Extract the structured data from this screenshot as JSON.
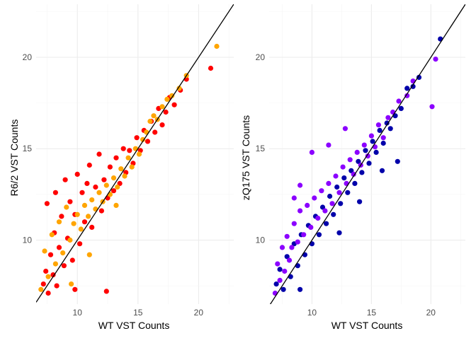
{
  "chart_data": [
    {
      "type": "scatter",
      "xlabel": "WT VST Counts",
      "ylabel": "R6/2 VST Counts",
      "xlim": [
        6.6,
        22.9
      ],
      "ylim": [
        6.5,
        22.9
      ],
      "xticks": [
        "10",
        "15",
        "20"
      ],
      "yticks": [
        "10",
        "15",
        "20"
      ],
      "grid": true,
      "legend": "none",
      "reference_line": {
        "slope": 1,
        "intercept": 0,
        "color": "#000000"
      },
      "series": [
        {
          "color": "#ff0000",
          "points": [
            [
              7.2,
              7.6
            ],
            [
              7.4,
              8.3
            ],
            [
              7.6,
              7.1
            ],
            [
              7.8,
              9.2
            ],
            [
              8.0,
              8.1
            ],
            [
              8.1,
              10.4
            ],
            [
              8.3,
              7.5
            ],
            [
              8.5,
              9.6
            ],
            [
              8.7,
              11.3
            ],
            [
              8.9,
              8.6
            ],
            [
              9.0,
              13.3
            ],
            [
              9.2,
              10.1
            ],
            [
              9.4,
              12.1
            ],
            [
              9.6,
              8.9
            ],
            [
              9.8,
              11.4
            ],
            [
              10.0,
              13.6
            ],
            [
              10.2,
              9.8
            ],
            [
              10.4,
              12.6
            ],
            [
              10.6,
              11.0
            ],
            [
              10.8,
              13.1
            ],
            [
              11.0,
              14.1
            ],
            [
              11.2,
              10.7
            ],
            [
              11.5,
              12.9
            ],
            [
              11.8,
              14.7
            ],
            [
              12.0,
              11.6
            ],
            [
              12.2,
              13.3
            ],
            [
              12.5,
              12.3
            ],
            [
              12.7,
              14.0
            ],
            [
              13.0,
              12.7
            ],
            [
              13.2,
              14.5
            ],
            [
              13.5,
              13.1
            ],
            [
              13.8,
              15.0
            ],
            [
              14.0,
              13.7
            ],
            [
              14.3,
              14.9
            ],
            [
              14.6,
              14.2
            ],
            [
              14.9,
              15.6
            ],
            [
              15.2,
              14.9
            ],
            [
              15.5,
              16.0
            ],
            [
              15.8,
              15.4
            ],
            [
              16.1,
              16.5
            ],
            [
              16.4,
              15.9
            ],
            [
              16.7,
              17.2
            ],
            [
              17.0,
              16.3
            ],
            [
              17.3,
              17.0
            ],
            [
              17.6,
              17.8
            ],
            [
              18.0,
              17.4
            ],
            [
              18.5,
              18.2
            ],
            [
              19.0,
              18.8
            ],
            [
              21.0,
              19.4
            ],
            [
              12.4,
              7.2
            ],
            [
              7.5,
              12.0
            ],
            [
              9.8,
              7.3
            ],
            [
              8.2,
              12.6
            ]
          ]
        },
        {
          "color": "#ffa500",
          "points": [
            [
              7.0,
              7.3
            ],
            [
              7.3,
              9.4
            ],
            [
              7.6,
              8.0
            ],
            [
              7.9,
              10.3
            ],
            [
              8.2,
              8.7
            ],
            [
              8.5,
              11.0
            ],
            [
              8.8,
              9.3
            ],
            [
              9.1,
              11.8
            ],
            [
              9.4,
              10.0
            ],
            [
              9.7,
              10.9
            ],
            [
              10.0,
              11.4
            ],
            [
              10.3,
              10.6
            ],
            [
              10.6,
              11.9
            ],
            [
              10.9,
              11.3
            ],
            [
              11.2,
              12.2
            ],
            [
              11.5,
              11.7
            ],
            [
              11.8,
              12.6
            ],
            [
              12.1,
              12.1
            ],
            [
              12.4,
              13.0
            ],
            [
              12.7,
              12.5
            ],
            [
              13.0,
              13.4
            ],
            [
              13.3,
              12.9
            ],
            [
              13.6,
              13.9
            ],
            [
              13.9,
              13.5
            ],
            [
              14.2,
              14.5
            ],
            [
              14.5,
              14.0
            ],
            [
              14.8,
              15.0
            ],
            [
              15.1,
              14.7
            ],
            [
              15.4,
              15.5
            ],
            [
              15.7,
              15.9
            ],
            [
              16.0,
              16.5
            ],
            [
              16.3,
              16.8
            ],
            [
              16.6,
              16.6
            ],
            [
              17.0,
              17.3
            ],
            [
              17.4,
              17.7
            ],
            [
              17.8,
              17.9
            ],
            [
              18.4,
              18.3
            ],
            [
              19.0,
              19.0
            ],
            [
              21.5,
              20.6
            ],
            [
              9.5,
              7.6
            ],
            [
              13.2,
              11.9
            ],
            [
              11.0,
              9.2
            ]
          ]
        }
      ]
    },
    {
      "type": "scatter",
      "xlabel": "WT VST Counts",
      "ylabel": "zQ175 VST Counts",
      "xlim": [
        6.4,
        22.9
      ],
      "ylim": [
        6.5,
        22.9
      ],
      "xticks": [
        "10",
        "15",
        "20"
      ],
      "yticks": [
        "10",
        "15",
        "20"
      ],
      "grid": true,
      "legend": "none",
      "reference_line": {
        "slope": 1,
        "intercept": 0,
        "color": "#000000"
      },
      "series": [
        {
          "color": "#0000aa",
          "points": [
            [
              7.0,
              7.6
            ],
            [
              7.3,
              8.4
            ],
            [
              7.6,
              7.3
            ],
            [
              7.9,
              9.1
            ],
            [
              8.2,
              8.0
            ],
            [
              8.5,
              9.8
            ],
            [
              8.8,
              8.6
            ],
            [
              9.1,
              10.3
            ],
            [
              9.4,
              9.2
            ],
            [
              9.7,
              10.8
            ],
            [
              10.0,
              9.8
            ],
            [
              10.3,
              11.3
            ],
            [
              10.6,
              10.3
            ],
            [
              10.9,
              11.8
            ],
            [
              11.2,
              10.9
            ],
            [
              11.5,
              12.4
            ],
            [
              11.8,
              11.4
            ],
            [
              12.1,
              12.9
            ],
            [
              12.4,
              12.0
            ],
            [
              12.7,
              13.4
            ],
            [
              13.0,
              12.6
            ],
            [
              13.3,
              13.8
            ],
            [
              13.6,
              13.1
            ],
            [
              13.9,
              14.3
            ],
            [
              14.2,
              13.7
            ],
            [
              14.5,
              14.9
            ],
            [
              14.8,
              14.2
            ],
            [
              15.1,
              15.4
            ],
            [
              15.4,
              14.8
            ],
            [
              15.7,
              16.0
            ],
            [
              16.0,
              15.3
            ],
            [
              16.3,
              16.4
            ],
            [
              16.6,
              16.1
            ],
            [
              17.0,
              16.8
            ],
            [
              17.5,
              17.2
            ],
            [
              18.0,
              18.3
            ],
            [
              18.5,
              18.4
            ],
            [
              19.0,
              18.9
            ],
            [
              20.8,
              21.0
            ],
            [
              15.9,
              13.8
            ],
            [
              17.2,
              14.3
            ],
            [
              14.0,
              12.1
            ],
            [
              12.3,
              10.4
            ],
            [
              9.0,
              7.3
            ]
          ]
        },
        {
          "color": "#8b00ff",
          "points": [
            [
              6.9,
              7.1
            ],
            [
              7.1,
              8.7
            ],
            [
              7.3,
              7.8
            ],
            [
              7.5,
              9.6
            ],
            [
              7.7,
              8.3
            ],
            [
              7.9,
              10.2
            ],
            [
              8.1,
              8.9
            ],
            [
              8.3,
              9.6
            ],
            [
              8.5,
              10.9
            ],
            [
              8.8,
              9.9
            ],
            [
              9.0,
              11.6
            ],
            [
              9.3,
              10.3
            ],
            [
              9.6,
              11.9
            ],
            [
              9.9,
              10.7
            ],
            [
              10.2,
              12.3
            ],
            [
              10.5,
              11.2
            ],
            [
              10.8,
              12.7
            ],
            [
              11.1,
              11.6
            ],
            [
              11.4,
              13.1
            ],
            [
              11.7,
              12.0
            ],
            [
              12.0,
              13.5
            ],
            [
              12.3,
              12.6
            ],
            [
              12.6,
              14.0
            ],
            [
              12.9,
              13.1
            ],
            [
              13.2,
              14.4
            ],
            [
              13.5,
              13.6
            ],
            [
              13.8,
              14.8
            ],
            [
              14.1,
              14.1
            ],
            [
              14.4,
              15.2
            ],
            [
              14.7,
              14.6
            ],
            [
              15.0,
              15.7
            ],
            [
              15.3,
              15.1
            ],
            [
              15.6,
              16.3
            ],
            [
              16.0,
              15.6
            ],
            [
              16.4,
              16.7
            ],
            [
              16.8,
              17.0
            ],
            [
              17.3,
              17.6
            ],
            [
              18.0,
              17.9
            ],
            [
              18.5,
              18.7
            ],
            [
              20.1,
              17.3
            ],
            [
              20.4,
              19.9
            ],
            [
              10.0,
              14.8
            ],
            [
              9.0,
              13.0
            ],
            [
              8.5,
              12.3
            ],
            [
              11.4,
              15.2
            ],
            [
              12.8,
              16.1
            ]
          ]
        }
      ]
    }
  ]
}
